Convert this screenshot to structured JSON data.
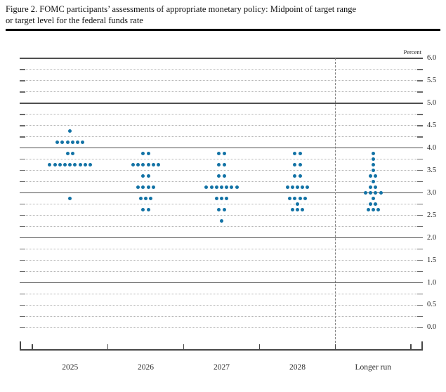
{
  "figure": {
    "title_line1": "Figure 2. FOMC participants’ assessments of appropriate monetary policy: Midpoint of target range",
    "title_line2": "or target level for the federal funds rate"
  },
  "chart_data": {
    "type": "scatter",
    "title": "FOMC participants’ assessments of appropriate monetary policy: Midpoint of target range or target level for the federal funds rate",
    "unit_label": "Percent",
    "xlabel": "",
    "ylabel": "Percent",
    "ylim": [
      0.0,
      6.0
    ],
    "y_label_step": 0.5,
    "y_grid_step": 0.25,
    "grid": true,
    "legend_position": "none",
    "dot_color": "#1272a5",
    "participants_per_column": 19,
    "categories": [
      "2025",
      "2026",
      "2027",
      "2028",
      "Longer run"
    ],
    "separator_before_category": "Longer run",
    "series": [
      {
        "name": "2025",
        "dots": [
          {
            "rate": 4.375,
            "count": 1
          },
          {
            "rate": 4.125,
            "count": 6
          },
          {
            "rate": 3.875,
            "count": 2
          },
          {
            "rate": 3.625,
            "count": 9
          },
          {
            "rate": 2.875,
            "count": 1
          }
        ]
      },
      {
        "name": "2026",
        "dots": [
          {
            "rate": 3.875,
            "count": 2
          },
          {
            "rate": 3.625,
            "count": 6
          },
          {
            "rate": 3.375,
            "count": 2
          },
          {
            "rate": 3.125,
            "count": 4
          },
          {
            "rate": 2.875,
            "count": 3
          },
          {
            "rate": 2.625,
            "count": 2
          }
        ]
      },
      {
        "name": "2027",
        "dots": [
          {
            "rate": 3.875,
            "count": 2
          },
          {
            "rate": 3.625,
            "count": 2
          },
          {
            "rate": 3.375,
            "count": 2
          },
          {
            "rate": 3.125,
            "count": 7
          },
          {
            "rate": 2.875,
            "count": 3
          },
          {
            "rate": 2.625,
            "count": 2
          },
          {
            "rate": 2.375,
            "count": 1
          }
        ]
      },
      {
        "name": "2028",
        "dots": [
          {
            "rate": 3.875,
            "count": 2
          },
          {
            "rate": 3.625,
            "count": 2
          },
          {
            "rate": 3.375,
            "count": 2
          },
          {
            "rate": 3.125,
            "count": 5
          },
          {
            "rate": 2.875,
            "count": 4
          },
          {
            "rate": 2.75,
            "count": 1
          },
          {
            "rate": 2.625,
            "count": 3
          }
        ]
      },
      {
        "name": "Longer run",
        "dots": [
          {
            "rate": 3.875,
            "count": 1
          },
          {
            "rate": 3.75,
            "count": 1
          },
          {
            "rate": 3.625,
            "count": 1
          },
          {
            "rate": 3.5,
            "count": 1
          },
          {
            "rate": 3.375,
            "count": 2
          },
          {
            "rate": 3.25,
            "count": 1
          },
          {
            "rate": 3.125,
            "count": 2
          },
          {
            "rate": 3.0,
            "count": 4
          },
          {
            "rate": 2.875,
            "count": 1
          },
          {
            "rate": 2.75,
            "count": 2
          },
          {
            "rate": 2.625,
            "count": 3
          }
        ]
      }
    ]
  }
}
